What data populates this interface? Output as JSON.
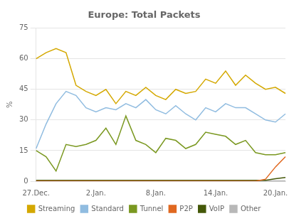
{
  "chart_data": {
    "type": "line",
    "title": "Europe: Total Packets",
    "ylabel": "%",
    "categories": [
      "27.Dec.",
      null,
      null,
      null,
      null,
      null,
      "2.Jan.",
      null,
      null,
      null,
      null,
      null,
      "8.Jan.",
      null,
      null,
      null,
      null,
      null,
      "14.Jan.",
      null,
      null,
      null,
      null,
      null,
      "20.Jan.",
      null
    ],
    "series": [
      {
        "name": "Streaming",
        "color": "#d4a800",
        "values": [
          60,
          63,
          65,
          63,
          47,
          44,
          42,
          45,
          38,
          44,
          42,
          46,
          42,
          40,
          45,
          43,
          44,
          50,
          48,
          54,
          47,
          52,
          48,
          45,
          46,
          43
        ]
      },
      {
        "name": "Standard",
        "color": "#90bce0",
        "values": [
          16,
          28,
          38,
          44,
          42,
          36,
          34,
          36,
          35,
          38,
          36,
          40,
          35,
          33,
          37,
          33,
          30,
          36,
          34,
          38,
          36,
          36,
          33,
          30,
          29,
          33
        ]
      },
      {
        "name": "Tunnel",
        "color": "#7a9820",
        "values": [
          15,
          12,
          5,
          18,
          17,
          18,
          20,
          26,
          18,
          32,
          20,
          18,
          14,
          21,
          20,
          16,
          18,
          24,
          23,
          22,
          18,
          20,
          14,
          13,
          13,
          14
        ]
      },
      {
        "name": "P2P",
        "color": "#e06820",
        "values": [
          0,
          0,
          0,
          0,
          0,
          0,
          0,
          0,
          0,
          0,
          0,
          0,
          0,
          0,
          0,
          0,
          0,
          0,
          0,
          0,
          0,
          0,
          0,
          1,
          7,
          12
        ]
      },
      {
        "name": "VoIP",
        "color": "#445808",
        "values": [
          0.4,
          0.4,
          0.4,
          0.4,
          0.4,
          0.4,
          0.4,
          0.4,
          0.4,
          0.4,
          0.4,
          0.4,
          0.4,
          0.4,
          0.4,
          0.4,
          0.4,
          0.4,
          0.4,
          0.4,
          0.4,
          0.4,
          0.4,
          0.4,
          1.2,
          1.8
        ]
      },
      {
        "name": "Other",
        "color": "#b8b8b8",
        "values": [
          0.2,
          0.2,
          0.2,
          0.2,
          0.2,
          0.2,
          0.2,
          0.4,
          0.2,
          0.2,
          0.2,
          0.2,
          0.2,
          0.2,
          0.2,
          0.2,
          0.2,
          0.2,
          0.2,
          0.2,
          0.2,
          0.2,
          0.2,
          0.2,
          0.2,
          0.2
        ]
      }
    ],
    "ylim": [
      0,
      75
    ],
    "yticks": [
      0,
      15,
      30,
      45,
      60,
      75
    ],
    "grid": true,
    "legend": "bottom"
  }
}
